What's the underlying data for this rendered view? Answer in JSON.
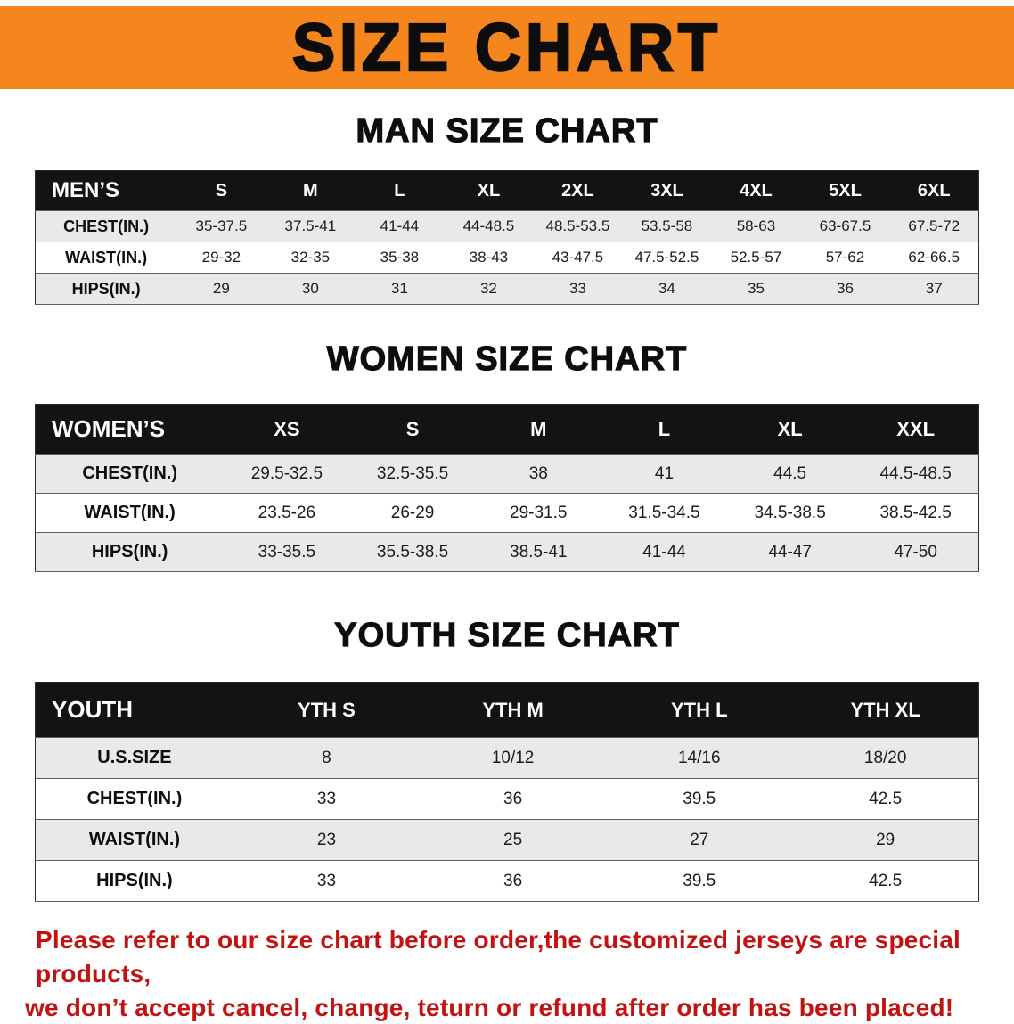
{
  "banner": {
    "title": "SIZE CHART",
    "bg_color": "#f5861d"
  },
  "sections": [
    {
      "heading": "MAN SIZE CHART",
      "table": {
        "header": [
          "MEN’S",
          "S",
          "M",
          "L",
          "XL",
          "2XL",
          "3XL",
          "4XL",
          "5XL",
          "6XL"
        ],
        "rows": [
          [
            "CHEST(IN.)",
            "35-37.5",
            "37.5-41",
            "41-44",
            "44-48.5",
            "48.5-53.5",
            "53.5-58",
            "58-63",
            "63-67.5",
            "67.5-72"
          ],
          [
            "WAIST(IN.)",
            "29-32",
            "32-35",
            "35-38",
            "38-43",
            "43-47.5",
            "47.5-52.5",
            "52.5-57",
            "57-62",
            "62-66.5"
          ],
          [
            "HIPS(IN.)",
            "29",
            "30",
            "31",
            "32",
            "33",
            "34",
            "35",
            "36",
            "37"
          ]
        ]
      }
    },
    {
      "heading": "WOMEN SIZE CHART",
      "table": {
        "header": [
          "WOMEN’S",
          "XS",
          "S",
          "M",
          "L",
          "XL",
          "XXL"
        ],
        "rows": [
          [
            "CHEST(IN.)",
            "29.5-32.5",
            "32.5-35.5",
            "38",
            "41",
            "44.5",
            "44.5-48.5"
          ],
          [
            "WAIST(IN.)",
            "23.5-26",
            "26-29",
            "29-31.5",
            "31.5-34.5",
            "34.5-38.5",
            "38.5-42.5"
          ],
          [
            "HIPS(IN.)",
            "33-35.5",
            "35.5-38.5",
            "38.5-41",
            "41-44",
            "44-47",
            "47-50"
          ]
        ]
      }
    },
    {
      "heading": "YOUTH SIZE CHART",
      "table": {
        "header": [
          "YOUTH",
          "YTH S",
          "YTH M",
          "YTH L",
          "YTH XL"
        ],
        "rows": [
          [
            "U.S.SIZE",
            "8",
            "10/12",
            "14/16",
            "18/20"
          ],
          [
            "CHEST(IN.)",
            "33",
            "36",
            "39.5",
            "42.5"
          ],
          [
            "WAIST(IN.)",
            "23",
            "25",
            "27",
            "29"
          ],
          [
            "HIPS(IN.)",
            "33",
            "36",
            "39.5",
            "42.5"
          ]
        ]
      }
    }
  ],
  "footer_note": {
    "color": "#c31212",
    "lines": [
      "Please refer to our size chart before order,the customized jerseys are special products,",
      "we don’t accept cancel, change, teturn or refund after order has been placed!"
    ]
  }
}
